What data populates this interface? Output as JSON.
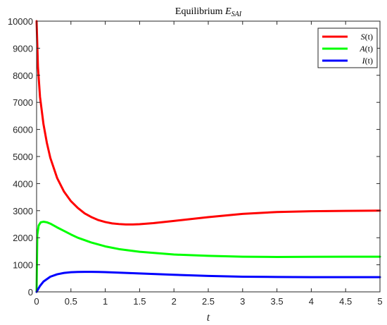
{
  "chart_data": {
    "type": "line",
    "title_base": "Equilibrium ",
    "title_math": "E",
    "title_sub": "SAI",
    "xlabel": "t",
    "ylabel": "",
    "xlim": [
      0,
      5
    ],
    "ylim": [
      0,
      10000
    ],
    "xticks": [
      "0",
      "0.5",
      "1",
      "1.5",
      "2",
      "2.5",
      "3",
      "3.5",
      "4",
      "4.5",
      "5"
    ],
    "yticks": [
      "0",
      "1000",
      "2000",
      "3000",
      "4000",
      "5000",
      "6000",
      "7000",
      "8000",
      "9000",
      "10000"
    ],
    "legend_position": "top-right",
    "grid": false,
    "series": [
      {
        "name": "S(t)",
        "color": "#ff0000",
        "x": [
          0,
          0.02,
          0.05,
          0.1,
          0.15,
          0.2,
          0.3,
          0.4,
          0.5,
          0.6,
          0.7,
          0.8,
          0.9,
          1.0,
          1.1,
          1.2,
          1.3,
          1.4,
          1.5,
          1.7,
          2.0,
          2.5,
          3.0,
          3.5,
          4.0,
          4.5,
          5.0
        ],
        "y": [
          10000,
          8300,
          7200,
          6200,
          5500,
          4950,
          4200,
          3700,
          3350,
          3100,
          2900,
          2760,
          2650,
          2580,
          2530,
          2505,
          2490,
          2490,
          2500,
          2540,
          2620,
          2760,
          2880,
          2950,
          2980,
          2990,
          3000
        ]
      },
      {
        "name": "A(t)",
        "color": "#00ff00",
        "x": [
          0,
          0.01,
          0.03,
          0.06,
          0.1,
          0.15,
          0.2,
          0.3,
          0.4,
          0.5,
          0.6,
          0.8,
          1.0,
          1.2,
          1.5,
          2.0,
          2.5,
          3.0,
          3.5,
          4.0,
          4.5,
          5.0
        ],
        "y": [
          0,
          2100,
          2450,
          2570,
          2590,
          2570,
          2520,
          2380,
          2250,
          2120,
          2000,
          1820,
          1680,
          1580,
          1480,
          1380,
          1330,
          1300,
          1290,
          1295,
          1300,
          1300
        ]
      },
      {
        "name": "I(t)",
        "color": "#0000ff",
        "x": [
          0,
          0.05,
          0.1,
          0.2,
          0.3,
          0.4,
          0.5,
          0.6,
          0.7,
          0.8,
          0.9,
          1.0,
          1.2,
          1.5,
          2.0,
          2.5,
          3.0,
          3.5,
          4.0,
          4.5,
          5.0
        ],
        "y": [
          0,
          220,
          380,
          560,
          650,
          700,
          725,
          735,
          740,
          740,
          735,
          730,
          710,
          680,
          630,
          590,
          560,
          550,
          545,
          545,
          545
        ]
      }
    ]
  }
}
